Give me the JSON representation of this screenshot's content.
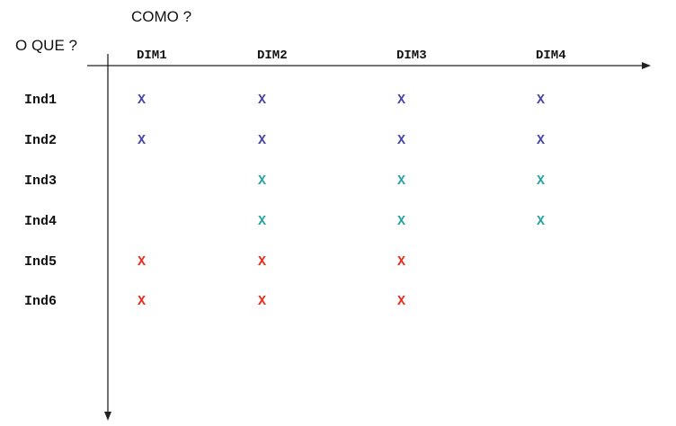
{
  "titles": {
    "columns": "COMO ?",
    "rows": "O QUE ?"
  },
  "columns": [
    "DIM1",
    "DIM2",
    "DIM3",
    "DIM4"
  ],
  "rows": [
    "Ind1",
    "Ind2",
    "Ind3",
    "Ind4",
    "Ind5",
    "Ind6"
  ],
  "mark_symbol": "X",
  "colors": {
    "blue": "#4646a8",
    "teal": "#27a3a3",
    "red": "#ee2a1a",
    "axis": "#222222"
  },
  "matrix": [
    [
      "blue",
      "blue",
      "blue",
      "blue"
    ],
    [
      "blue",
      "blue",
      "blue",
      "blue"
    ],
    [
      null,
      "teal",
      "teal",
      "teal"
    ],
    [
      null,
      "teal",
      "teal",
      "teal"
    ],
    [
      "red",
      "red",
      "red",
      null
    ],
    [
      "red",
      "red",
      "red",
      null
    ]
  ]
}
